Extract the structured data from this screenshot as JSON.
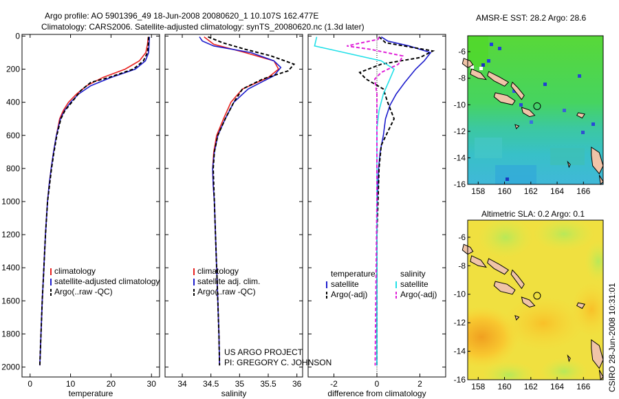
{
  "header": {
    "line1": "Argo profile: AO 5901396_49 18-Jun-2008 20080620_1 10.107S 162.477E",
    "line2": "Climatology: CARS2006. Satellite-adjusted climatology: synTS_20080620.nc (1.3d later)"
  },
  "footer": {
    "credit1": "US ARGO PROJECT",
    "credit2": "PI: GREGORY C. JOHNSON",
    "stamp": "CSIRO 28-Jun-2008 10:31:01"
  },
  "colors": {
    "climatology": "#e8201e",
    "satellite": "#1c1ccc",
    "argo": "#000000",
    "satellite_salinity": "#22e0e8",
    "argo_salinity": "#e020d8",
    "coast_fill": "#f0c4a8"
  },
  "chart_data": [
    {
      "id": "temperature",
      "type": "line",
      "xlabel": "temperature",
      "xlim": [
        -2,
        32
      ],
      "ylim": [
        2060,
        -10
      ],
      "xticks": [
        0,
        10,
        20,
        30
      ],
      "yticks": [
        0,
        200,
        400,
        600,
        800,
        1000,
        1200,
        1400,
        1600,
        1800,
        2000
      ],
      "legend": [
        "climatology",
        "satellite-adjusted climatology",
        "Argo(..raw -QC)"
      ],
      "series": [
        {
          "name": "climatology",
          "color": "#e8201e",
          "dash": "",
          "points": [
            [
              29.2,
              5
            ],
            [
              29.0,
              50
            ],
            [
              28.6,
              100
            ],
            [
              27.0,
              150
            ],
            [
              23.5,
              200
            ],
            [
              18,
              250
            ],
            [
              14,
              300
            ],
            [
              11.5,
              350
            ],
            [
              9.5,
              400
            ],
            [
              8.2,
              450
            ],
            [
              7.3,
              500
            ],
            [
              6.5,
              600
            ],
            [
              5.8,
              700
            ],
            [
              5.2,
              800
            ],
            [
              4.7,
              900
            ],
            [
              4.3,
              1000
            ],
            [
              3.8,
              1200
            ],
            [
              3.4,
              1400
            ],
            [
              3.0,
              1600
            ],
            [
              2.7,
              1800
            ],
            [
              2.4,
              1990
            ]
          ]
        },
        {
          "name": "satellite",
          "color": "#1c1ccc",
          "dash": "",
          "points": [
            [
              29.5,
              5
            ],
            [
              29.4,
              50
            ],
            [
              29.3,
              100
            ],
            [
              28.5,
              150
            ],
            [
              26.0,
              200
            ],
            [
              20.0,
              250
            ],
            [
              15.0,
              300
            ],
            [
              12.0,
              350
            ],
            [
              10.0,
              400
            ],
            [
              8.5,
              450
            ],
            [
              7.5,
              500
            ],
            [
              6.5,
              600
            ],
            [
              5.8,
              700
            ],
            [
              5.2,
              800
            ],
            [
              4.7,
              900
            ],
            [
              4.3,
              1000
            ],
            [
              3.8,
              1200
            ],
            [
              3.4,
              1400
            ],
            [
              3.0,
              1600
            ],
            [
              2.7,
              1800
            ],
            [
              2.4,
              1990
            ]
          ]
        },
        {
          "name": "argo",
          "color": "#000000",
          "dash": "5,3",
          "points": [
            [
              29.3,
              5
            ],
            [
              29.2,
              60
            ],
            [
              29.0,
              100
            ],
            [
              28.0,
              150
            ],
            [
              25.5,
              200
            ],
            [
              19.5,
              250
            ],
            [
              15.0,
              280
            ],
            [
              12.5,
              330
            ],
            [
              10.3,
              400
            ],
            [
              8.6,
              450
            ],
            [
              7.6,
              500
            ],
            [
              6.6,
              600
            ],
            [
              5.9,
              700
            ],
            [
              5.3,
              800
            ],
            [
              4.8,
              900
            ],
            [
              4.3,
              1000
            ],
            [
              3.8,
              1200
            ],
            [
              3.4,
              1400
            ],
            [
              3.0,
              1600
            ],
            [
              2.7,
              1800
            ],
            [
              2.4,
              1990
            ]
          ]
        }
      ]
    },
    {
      "id": "salinity",
      "type": "line",
      "xlabel": "salinity",
      "xlim": [
        33.7,
        36.1
      ],
      "ylim": [
        2060,
        -10
      ],
      "xticks": [
        34,
        34.5,
        35,
        35.5,
        36
      ],
      "yticks": [
        0,
        200,
        400,
        600,
        800,
        1000,
        1200,
        1400,
        1600,
        1800,
        2000
      ],
      "legend": [
        "climatology",
        "satellite adj. clim.",
        "Argo(..raw -QC)"
      ],
      "series": [
        {
          "name": "climatology",
          "color": "#e8201e",
          "dash": "",
          "points": [
            [
              34.38,
              5
            ],
            [
              34.55,
              50
            ],
            [
              35.1,
              100
            ],
            [
              35.6,
              150
            ],
            [
              35.68,
              200
            ],
            [
              35.5,
              250
            ],
            [
              35.05,
              320
            ],
            [
              34.85,
              400
            ],
            [
              34.72,
              500
            ],
            [
              34.6,
              600
            ],
            [
              34.55,
              700
            ],
            [
              34.53,
              800
            ],
            [
              34.54,
              900
            ],
            [
              34.56,
              1000
            ],
            [
              34.58,
              1200
            ],
            [
              34.6,
              1400
            ],
            [
              34.62,
              1600
            ],
            [
              34.64,
              1800
            ],
            [
              34.65,
              1990
            ]
          ]
        },
        {
          "name": "satellite",
          "color": "#1c1ccc",
          "dash": "",
          "points": [
            [
              34.3,
              5
            ],
            [
              34.35,
              30
            ],
            [
              34.55,
              60
            ],
            [
              35.2,
              100
            ],
            [
              35.6,
              150
            ],
            [
              35.72,
              190
            ],
            [
              35.6,
              240
            ],
            [
              35.15,
              320
            ],
            [
              34.9,
              400
            ],
            [
              34.75,
              500
            ],
            [
              34.62,
              600
            ],
            [
              34.56,
              700
            ],
            [
              34.53,
              800
            ],
            [
              34.54,
              900
            ],
            [
              34.56,
              1000
            ],
            [
              34.58,
              1200
            ],
            [
              34.6,
              1400
            ],
            [
              34.62,
              1600
            ],
            [
              34.64,
              1800
            ],
            [
              34.65,
              1990
            ]
          ]
        },
        {
          "name": "argo",
          "color": "#000000",
          "dash": "5,3",
          "points": [
            [
              34.45,
              5
            ],
            [
              34.7,
              40
            ],
            [
              35.1,
              80
            ],
            [
              35.55,
              120
            ],
            [
              35.95,
              170
            ],
            [
              35.85,
              210
            ],
            [
              35.4,
              260
            ],
            [
              35.05,
              320
            ],
            [
              34.9,
              400
            ],
            [
              34.75,
              500
            ],
            [
              34.62,
              600
            ],
            [
              34.56,
              700
            ],
            [
              34.54,
              800
            ],
            [
              34.55,
              900
            ],
            [
              34.56,
              1000
            ],
            [
              34.58,
              1200
            ],
            [
              34.6,
              1400
            ],
            [
              34.62,
              1600
            ],
            [
              34.64,
              1800
            ],
            [
              34.65,
              1990
            ]
          ]
        }
      ]
    },
    {
      "id": "difference",
      "type": "line",
      "xlabel": "difference from climatology",
      "xlim": [
        -3.2,
        3.2
      ],
      "ylim": [
        2060,
        -10
      ],
      "xticks": [
        -2,
        0,
        2
      ],
      "yticks": [
        0,
        200,
        400,
        600,
        800,
        1000,
        1200,
        1400,
        1600,
        1800,
        2000
      ],
      "legend_temperature_title": "temperature",
      "legend_salinity_title": "salinity",
      "legend_temperature": [
        "satellite",
        "Argo(-adj)"
      ],
      "legend_salinity": [
        "satellite",
        "Argo(-adj)"
      ],
      "series": [
        {
          "name": "temperature satellite",
          "color": "#1c1ccc",
          "dash": "",
          "points": [
            [
              0.2,
              5
            ],
            [
              0.5,
              30
            ],
            [
              1.5,
              60
            ],
            [
              2.5,
              100
            ],
            [
              2.2,
              150
            ],
            [
              1.8,
              200
            ],
            [
              1.3,
              280
            ],
            [
              0.9,
              350
            ],
            [
              0.6,
              420
            ],
            [
              0.4,
              500
            ],
            [
              0.3,
              600
            ],
            [
              0.15,
              700
            ],
            [
              0.08,
              800
            ],
            [
              0.05,
              900
            ],
            [
              0.02,
              1000
            ],
            [
              0.0,
              1200
            ],
            [
              0.0,
              1990
            ]
          ]
        },
        {
          "name": "temperature argo",
          "color": "#000000",
          "dash": "5,3",
          "points": [
            [
              0.1,
              5
            ],
            [
              0.4,
              40
            ],
            [
              2.6,
              90
            ],
            [
              2.0,
              130
            ],
            [
              0.2,
              170
            ],
            [
              -0.8,
              220
            ],
            [
              -0.5,
              260
            ],
            [
              0.3,
              320
            ],
            [
              0.5,
              400
            ],
            [
              0.8,
              500
            ],
            [
              0.5,
              580
            ],
            [
              0.2,
              660
            ],
            [
              0.1,
              800
            ],
            [
              0.05,
              1000
            ],
            [
              0.0,
              1200
            ],
            [
              0.0,
              1990
            ]
          ]
        },
        {
          "name": "salinity satellite",
          "color": "#22e0e8",
          "dash": "",
          "points": [
            [
              -2.8,
              5
            ],
            [
              -2.9,
              60
            ],
            [
              -1.5,
              100
            ],
            [
              0.2,
              150
            ],
            [
              0.8,
              200
            ],
            [
              0.6,
              260
            ],
            [
              0.3,
              350
            ],
            [
              0.1,
              450
            ],
            [
              0.0,
              560
            ],
            [
              0.0,
              700
            ],
            [
              0.0,
              900
            ],
            [
              0.0,
              1200
            ],
            [
              0.0,
              1990
            ]
          ]
        },
        {
          "name": "salinity argo",
          "color": "#e020d8",
          "dash": "5,3",
          "points": [
            [
              0.1,
              5
            ],
            [
              0.05,
              20
            ],
            [
              -1.4,
              60
            ],
            [
              -0.3,
              80
            ],
            [
              1.2,
              120
            ],
            [
              1.0,
              170
            ],
            [
              0.2,
              220
            ],
            [
              -0.1,
              260
            ],
            [
              0.0,
              350
            ],
            [
              0.0,
              700
            ],
            [
              0.0,
              1000
            ],
            [
              -0.05,
              1600
            ],
            [
              -0.08,
              1990
            ]
          ]
        }
      ]
    },
    {
      "id": "sst_map",
      "type": "heatmap",
      "title_prefix": "AMSR-E SST:",
      "title_value": "28.2",
      "argo_prefix": "Argo:",
      "argo_value": "28.6",
      "xlim": [
        157.2,
        167.5
      ],
      "ylim": [
        -16,
        -4.8
      ],
      "xticks": [
        158,
        160,
        162,
        164,
        166
      ],
      "yticks": [
        -6,
        -8,
        -10,
        -12,
        -14,
        -16
      ],
      "profile_lon": 162.477,
      "profile_lat": -10.107
    },
    {
      "id": "sla_map",
      "type": "heatmap",
      "title_prefix": "Altimetric SLA:",
      "title_value": "0.2",
      "argo_prefix": "Argo:",
      "argo_value": "0.1",
      "xlim": [
        157.2,
        167.5
      ],
      "ylim": [
        -16,
        -4.8
      ],
      "xticks": [
        158,
        160,
        162,
        164,
        166
      ],
      "yticks": [
        -6,
        -8,
        -10,
        -12,
        -14,
        -16
      ],
      "profile_lon": 162.477,
      "profile_lat": -10.107
    }
  ]
}
